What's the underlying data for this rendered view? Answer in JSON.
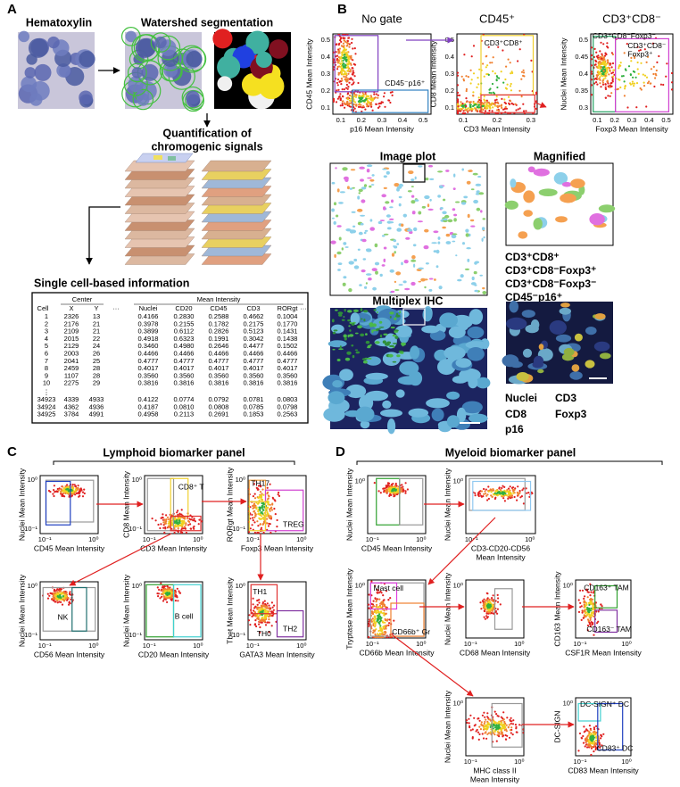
{
  "panel_a": {
    "label": "A",
    "hematoxylin": "Hematoxylin",
    "watershed": "Watershed segmentation",
    "quantification": [
      "Quantification of",
      "chromogenic signals"
    ],
    "single_cell": "Single cell-based information",
    "table": {
      "center": "Center",
      "mean_intensity": "Mean Intensity",
      "columns": [
        "Cell",
        "X",
        "Y",
        "···",
        "Nuclei",
        "CD20",
        "CD45",
        "CD3",
        "RORgt",
        "···"
      ],
      "rows": [
        [
          "1",
          "2326",
          "13",
          "0.4166",
          "0.2830",
          "0.2588",
          "0.4662",
          "0.1004"
        ],
        [
          "2",
          "2176",
          "21",
          "0.3978",
          "0.2155",
          "0.1782",
          "0.2175",
          "0.1770"
        ],
        [
          "3",
          "2109",
          "21",
          "0.3899",
          "0.6112",
          "0.2826",
          "0.5123",
          "0.1431"
        ],
        [
          "4",
          "2015",
          "22",
          "0.4918",
          "0.6323",
          "0.1991",
          "0.3042",
          "0.1438"
        ],
        [
          "5",
          "2129",
          "24",
          "0.3460",
          "0.4980",
          "0.2646",
          "0.4477",
          "0.1502"
        ],
        [
          "6",
          "2003",
          "26",
          "0.4466",
          "0.4466",
          "0.4466",
          "0.4466",
          "0.4466"
        ],
        [
          "7",
          "2041",
          "25",
          "0.4777",
          "0.4777",
          "0.4777",
          "0.4777",
          "0.4777"
        ],
        [
          "8",
          "2459",
          "28",
          "0.4017",
          "0.4017",
          "0.4017",
          "0.4017",
          "0.4017"
        ],
        [
          "9",
          "1107",
          "28",
          "0.3560",
          "0.3560",
          "0.3560",
          "0.3560",
          "0.3560"
        ],
        [
          "10",
          "2275",
          "29",
          "0.3816",
          "0.3816",
          "0.3816",
          "0.3816",
          "0.3816"
        ],
        [
          "34923",
          "4339",
          "4933",
          "0.4122",
          "0.0774",
          "0.0792",
          "0.0781",
          "0.0803"
        ],
        [
          "34924",
          "4362",
          "4936",
          "0.4187",
          "0.0810",
          "0.0808",
          "0.0785",
          "0.0798"
        ],
        [
          "34925",
          "3784",
          "4991",
          "0.4958",
          "0.2113",
          "0.2691",
          "0.1853",
          "0.2563"
        ]
      ],
      "vdots": "⋮"
    }
  },
  "panel_b": {
    "label": "B",
    "plots": [
      {
        "title": "No gate",
        "ylabel": "CD45 Mean Intensity",
        "xlabel": [
          "p16 Mean Intensity"
        ],
        "yticks": [
          "0.5",
          "0.4",
          "0.3",
          "0.2",
          "0.1"
        ],
        "xticks": [
          "0.1",
          "0.2",
          "0.3",
          "0.4",
          "0.5"
        ],
        "labels": [
          "CD45⁻p16⁺"
        ]
      },
      {
        "title": "CD45⁺",
        "ylabel": "CD8 Mean Intensity",
        "xlabel": [
          "CD3 Mean Intensity"
        ],
        "yticks": [
          "0.5",
          "0.4",
          "0.3",
          "0.2",
          "0.1"
        ],
        "xticks": [
          "0.1",
          "0.2",
          "0.3"
        ],
        "labels": [
          "CD3⁺CD8⁺"
        ]
      },
      {
        "title": "CD3⁺CD8⁻",
        "ylabel": "Nuclei Mean Intensity",
        "xlabel": [
          "Foxp3 Mean Intensity"
        ],
        "yticks": [
          "0.5",
          "0.45",
          "0.4",
          "0.35",
          "0.3"
        ],
        "xticks": [
          "0.1",
          "0.2",
          "0.3",
          "0.4",
          "0.5"
        ],
        "labels": [
          "CD3⁺CD8⁻Foxp3⁻",
          "CD3⁺CD8⁻",
          "Foxp3⁺"
        ]
      }
    ],
    "image_plot": "Image plot",
    "magnified": "Magnified",
    "multiplex": "Multiplex IHC",
    "legend": [
      "CD3⁺CD8⁺",
      "CD3⁺CD8⁻Foxp3⁺",
      "CD3⁺CD8⁻Foxp3⁻",
      "CD45⁻p16⁺"
    ],
    "stains": [
      "Nuclei",
      "CD3",
      "CD8",
      "Foxp3",
      "p16"
    ]
  },
  "panel_c": {
    "label": "C",
    "title": "Lymphoid biomarker panel",
    "plots": [
      {
        "ylabel": "Nuclei Mean Intensity",
        "xlabel": [
          "CD45 Mean Intensity"
        ],
        "yticks": [
          "10⁰",
          "10⁻¹"
        ],
        "xticks": [
          "10⁻¹",
          "10⁰"
        ],
        "labels": []
      },
      {
        "ylabel": "CD8 Mean Intensity",
        "xlabel": [
          "CD3 Mean Intensity"
        ],
        "yticks": [
          "10⁰",
          "10⁻¹"
        ],
        "xticks": [
          "10⁻¹",
          "10⁰"
        ],
        "labels": [
          "CD8⁺ T"
        ]
      },
      {
        "ylabel": "RORgt Mean Intensity",
        "xlabel": [
          "Foxp3 Mean Intensity"
        ],
        "yticks": [
          "10⁰",
          "10⁻¹"
        ],
        "xticks": [
          "10⁻¹",
          "10⁰"
        ],
        "labels": [
          "TH17",
          "TREG"
        ]
      },
      {
        "ylabel": "Nuclei Mean Intensity",
        "xlabel": [
          "CD56 Mean Intensity"
        ],
        "yticks": [
          "10⁰",
          "10⁻¹"
        ],
        "xticks": [
          "10⁻¹",
          "10⁰"
        ],
        "labels": [
          "NK"
        ]
      },
      {
        "ylabel": "Nuclei Mean Intensity",
        "xlabel": [
          "CD20 Mean Intensity"
        ],
        "yticks": [
          "10⁰",
          "10⁻¹"
        ],
        "xticks": [
          "10⁻¹",
          "10⁰"
        ],
        "labels": [
          "B cell"
        ]
      },
      {
        "ylabel": "Tbet Mean Intensity",
        "xlabel": [
          "GATA3 Mean Intensity"
        ],
        "yticks": [
          "10⁰",
          "10⁻¹"
        ],
        "xticks": [
          "10⁻¹",
          "10⁰"
        ],
        "labels": [
          "TH1",
          "TH0",
          "TH2"
        ]
      }
    ]
  },
  "panel_d": {
    "label": "D",
    "title": "Myeloid biomarker panel",
    "plots": [
      {
        "ylabel": "Nuclei Mean Intensity",
        "xlabel": [
          "CD45 Mean Intensity"
        ],
        "yticks": [
          "10⁰"
        ],
        "xticks": [
          "10⁻¹",
          "10⁰"
        ],
        "labels": []
      },
      {
        "ylabel": "Nuclei Mean Intensity",
        "xlabel": [
          "CD3-CD20-CD56",
          "Mean Intensity"
        ],
        "yticks": [
          "10⁰"
        ],
        "xticks": [
          "10⁻¹",
          "10⁰"
        ],
        "labels": []
      },
      {
        "ylabel": "Tryptase Mean Intensity",
        "xlabel": [
          "CD66b Mean Intensity"
        ],
        "yticks": [
          "10⁰"
        ],
        "xticks": [
          "10⁻¹",
          "10⁰"
        ],
        "labels": [
          "Mast cell",
          "CD66b⁺ Gr"
        ]
      },
      {
        "ylabel": "Nuclei Mean Intensity",
        "xlabel": [
          "CD68 Mean Intensity"
        ],
        "yticks": [
          "10⁰"
        ],
        "xticks": [
          "10⁻¹",
          "10⁰"
        ],
        "labels": []
      },
      {
        "ylabel": "CD163 Mean Intensity",
        "xlabel": [
          "CSF1R Mean Intensity"
        ],
        "yticks": [
          "10⁰"
        ],
        "xticks": [
          "10⁻¹",
          "10⁰"
        ],
        "labels": [
          "CD163⁺ TAM",
          "CD163⁻ TAM"
        ]
      },
      {
        "ylabel": "Nuclei Mean Intensity",
        "xlabel": [
          "MHC class II",
          "Mean Intensity"
        ],
        "yticks": [
          "10⁰"
        ],
        "xticks": [
          "10⁻¹",
          "10⁰"
        ],
        "labels": []
      },
      {
        "ylabel": "DC-SIGN",
        "xlabel": [
          "CD83 Mean Intensity"
        ],
        "yticks": [
          "10⁰"
        ],
        "xticks": [
          "10⁻¹",
          "10⁰"
        ],
        "labels": [
          "DC-SIGN⁺ DC",
          "CD83⁺ DC"
        ]
      }
    ]
  }
}
